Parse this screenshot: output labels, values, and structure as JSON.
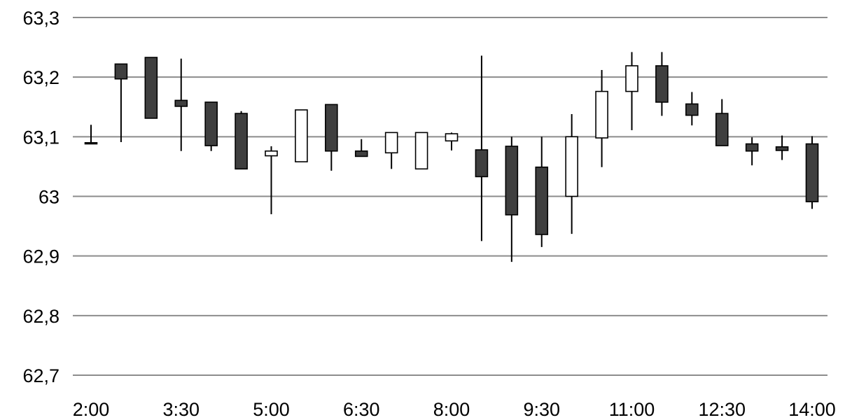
{
  "chart_data": {
    "type": "candlestick",
    "title": "",
    "xlabel": "",
    "ylabel": "",
    "ylim": [
      62.7,
      63.3
    ],
    "y_ticks": [
      63.3,
      63.2,
      63.1,
      63,
      62.9,
      62.8,
      62.7
    ],
    "y_tick_labels": [
      "63,3",
      "63,2",
      "63,1",
      "63",
      "62,9",
      "62,8",
      "62,7"
    ],
    "x_tick_labels": [
      "2:00",
      "3:30",
      "5:00",
      "6:30",
      "8:00",
      "9:30",
      "11:00",
      "12:30",
      "14:00"
    ],
    "grid": true,
    "legend": "none",
    "colors": {
      "rising_fill": "#ffffff",
      "falling_fill": "#3f3f3f",
      "stroke": "#000000",
      "grid": "#8c8c8c"
    },
    "x": [
      "2:00",
      "2:30",
      "3:00",
      "3:30",
      "4:00",
      "4:30",
      "5:00",
      "5:30",
      "6:00",
      "6:30",
      "7:00",
      "7:30",
      "8:00",
      "8:30",
      "9:00",
      "9:30",
      "10:00",
      "10:30",
      "11:00",
      "11:30",
      "12:00",
      "12:30",
      "13:00",
      "13:30",
      "14:00"
    ],
    "open": [
      63.09,
      63.222,
      63.233,
      63.161,
      63.158,
      63.139,
      63.068,
      63.058,
      63.154,
      63.076,
      63.073,
      63.046,
      63.093,
      63.078,
      63.084,
      63.049,
      63.0,
      63.098,
      63.176,
      63.219,
      63.155,
      63.139,
      63.088,
      63.083,
      63.088
    ],
    "high": [
      63.12,
      63.222,
      63.233,
      63.231,
      63.158,
      63.143,
      63.084,
      63.145,
      63.154,
      63.096,
      63.107,
      63.107,
      63.107,
      63.236,
      63.1,
      63.1,
      63.138,
      63.212,
      63.242,
      63.242,
      63.175,
      63.163,
      63.099,
      63.102,
      63.101
    ],
    "low": [
      63.088,
      63.091,
      63.131,
      63.076,
      63.076,
      63.046,
      62.97,
      63.058,
      63.043,
      63.067,
      63.046,
      63.046,
      63.077,
      62.925,
      62.89,
      62.915,
      62.937,
      63.049,
      63.111,
      63.135,
      63.119,
      63.086,
      63.052,
      63.061,
      62.979
    ],
    "close": [
      63.088,
      63.197,
      63.131,
      63.151,
      63.085,
      63.046,
      63.076,
      63.145,
      63.076,
      63.067,
      63.107,
      63.107,
      63.105,
      63.033,
      62.969,
      62.936,
      63.1,
      63.176,
      63.219,
      63.158,
      63.136,
      63.085,
      63.076,
      63.077,
      62.991
    ]
  }
}
